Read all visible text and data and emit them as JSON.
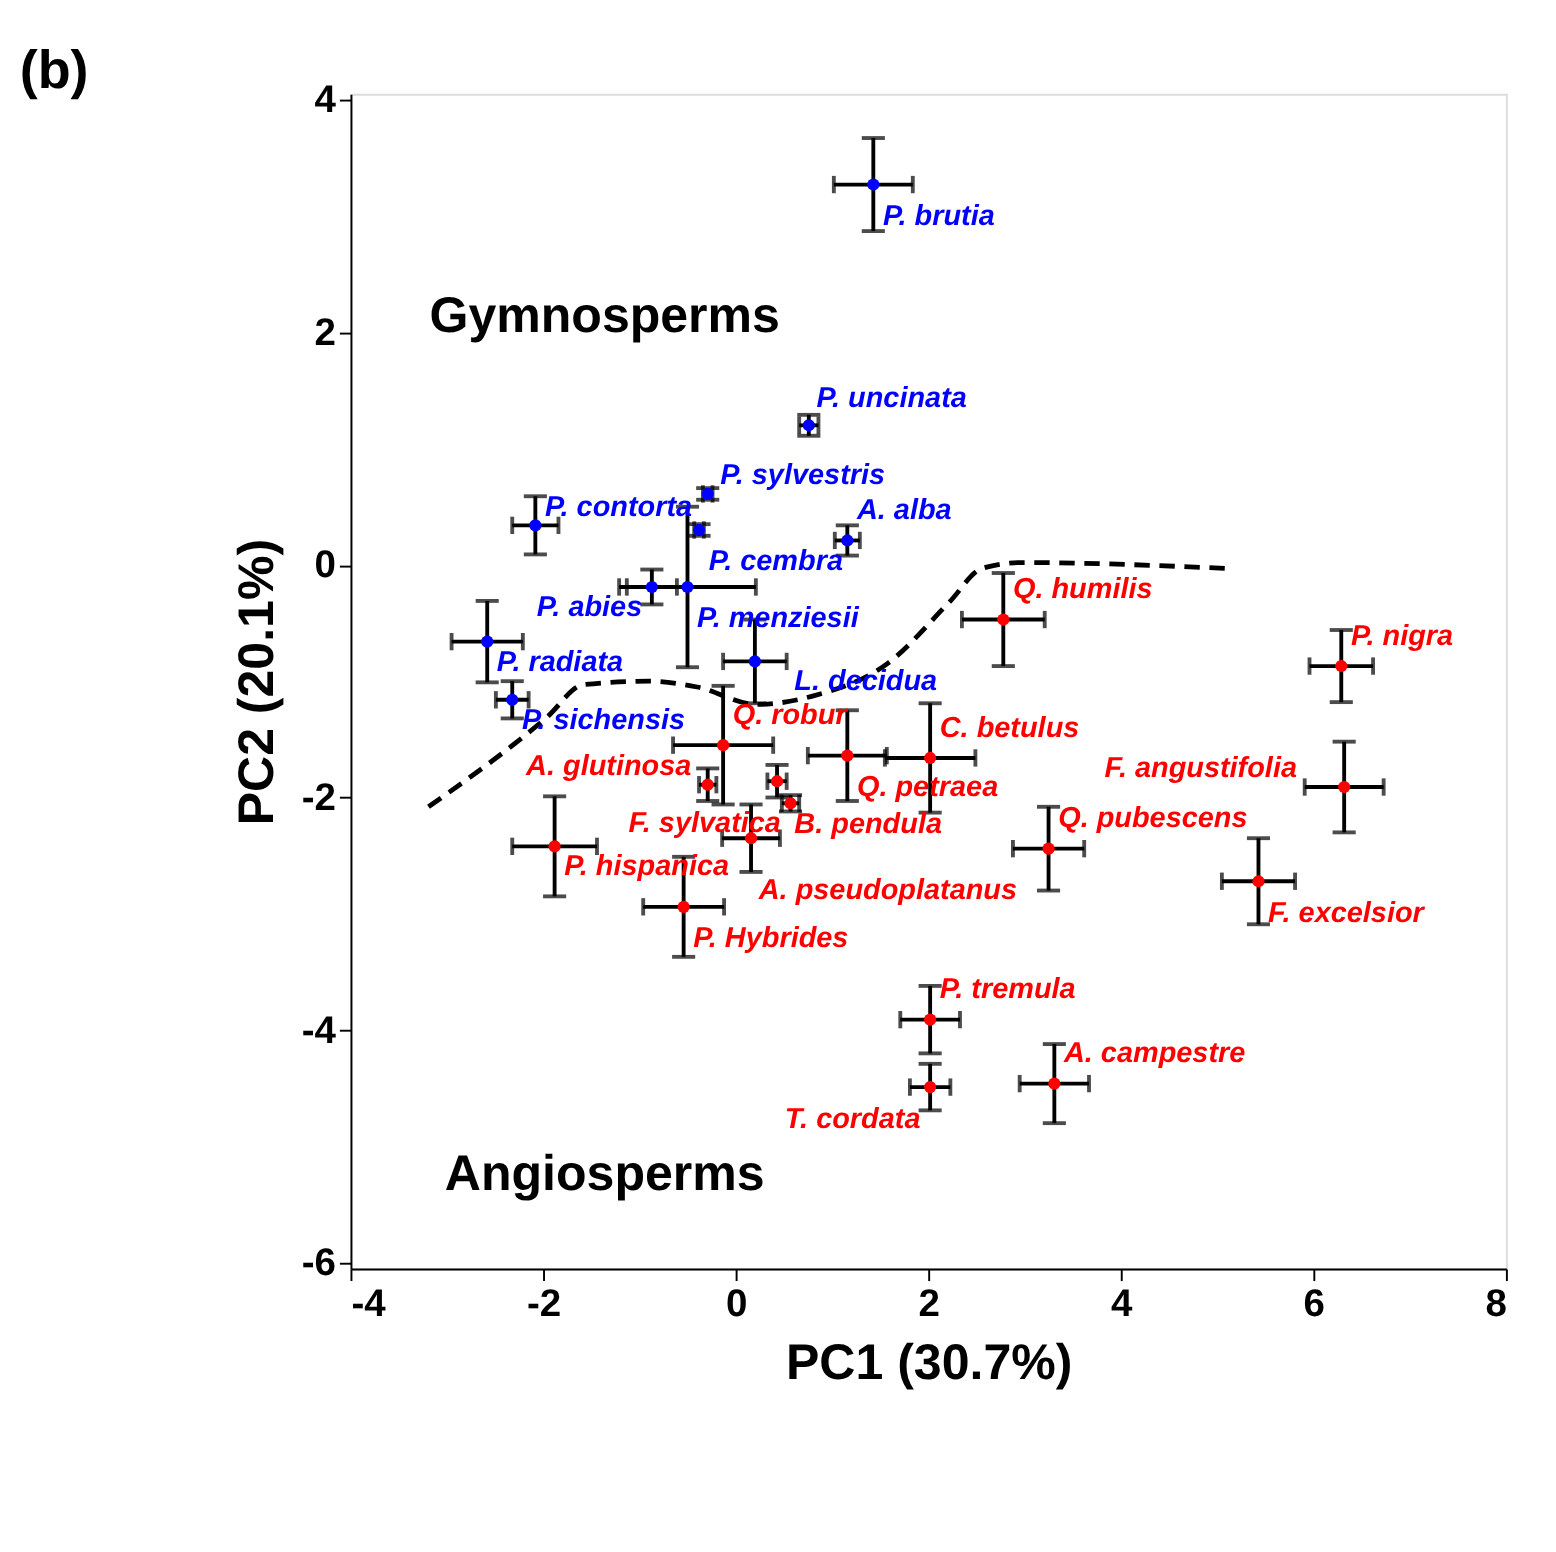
{
  "chart_data": {
    "type": "scatter",
    "title": "(b)",
    "xlabel": "PC1 (30.7%)",
    "ylabel": "PC2 (20.1%)",
    "xlim": [
      -4,
      8
    ],
    "ylim": [
      -6.05,
      4.05
    ],
    "xticks": [
      -4,
      -2,
      0,
      2,
      4,
      6,
      8
    ],
    "yticks": [
      -6,
      -4,
      -2,
      0,
      2,
      4
    ],
    "grid": false,
    "marker": "circle",
    "series": [
      {
        "color": "#0000ff",
        "x": [
          1.43,
          0.76,
          -0.29,
          -0.38,
          1.16,
          -2.08,
          -0.87,
          -0.5,
          -2.58,
          0.2,
          -2.32
        ],
        "values": [
          3.27,
          1.2,
          0.61,
          0.3,
          0.21,
          0.34,
          -0.19,
          -0.19,
          -0.66,
          -0.83,
          -1.16
        ],
        "xerrors": [
          0.41,
          0.1,
          0.05,
          0.05,
          0.13,
          0.24,
          0.26,
          0.71,
          0.37,
          0.33,
          0.17
        ],
        "errors": [
          0.4,
          0.09,
          0.05,
          0.05,
          0.13,
          0.25,
          0.15,
          0.69,
          0.35,
          0.36,
          0.16
        ],
        "value_labels": [
          "P. brutia",
          "P. uncinata",
          "P. sylvestris",
          "P. cembra",
          "A. alba",
          "P. contorta",
          "P. abies",
          "P. menziesii",
          "P. radiata",
          "L. decidua",
          "P. sichensis"
        ]
      },
      {
        "color": "#ff0000",
        "x": [
          2.78,
          6.29,
          -0.13,
          -0.29,
          0.43,
          0.57,
          0.16,
          -1.88,
          -0.54,
          1.16,
          2.02,
          2.02,
          2.02,
          3.25,
          6.32,
          5.43,
          3.31
        ],
        "values": [
          -0.47,
          -0.87,
          -1.55,
          -1.89,
          -1.86,
          -2.05,
          -2.35,
          -2.42,
          -2.94,
          -1.64,
          -1.66,
          -3.91,
          -4.49,
          -2.44,
          -1.91,
          -2.72,
          -4.46
        ],
        "xerrors": [
          0.43,
          0.33,
          0.52,
          0.09,
          0.1,
          0.09,
          0.3,
          0.44,
          0.42,
          0.41,
          0.47,
          0.31,
          0.21,
          0.37,
          0.41,
          0.38,
          0.36
        ],
        "errors": [
          0.4,
          0.31,
          0.51,
          0.14,
          0.14,
          0.07,
          0.29,
          0.43,
          0.43,
          0.39,
          0.47,
          0.29,
          0.2,
          0.36,
          0.39,
          0.37,
          0.34
        ],
        "value_labels": [
          "Q. humilis",
          "P. nigra",
          "Q. robur",
          "A. glutinosa",
          "B. pendula",
          "F. sylvatica",
          "A. pseudoplatanus",
          "P. hispanica",
          "P. Hybrides",
          "Q. petraea",
          "C. betulus",
          "P. tremula",
          "T. cordata",
          "Q. pubescens",
          "F. angustifolia",
          "F. excelsior",
          "A. campestre"
        ]
      },
      {
        "type": "line",
        "color": "#000000",
        "line_style": "dashed",
        "marker": "none",
        "x": [
          -3.19,
          -1.96,
          -1.58,
          -0.9,
          -0.4,
          0.22,
          0.79,
          1.59,
          2.22,
          2.56,
          2.97,
          5.08
        ],
        "values": [
          -2.08,
          -1.31,
          -1.03,
          -1.0,
          -1.05,
          -1.2,
          -1.13,
          -0.84,
          -0.32,
          -0.03,
          0.02,
          -0.03
        ]
      }
    ],
    "annotations": [
      "Gymnosperms",
      "Angiosperms"
    ]
  }
}
